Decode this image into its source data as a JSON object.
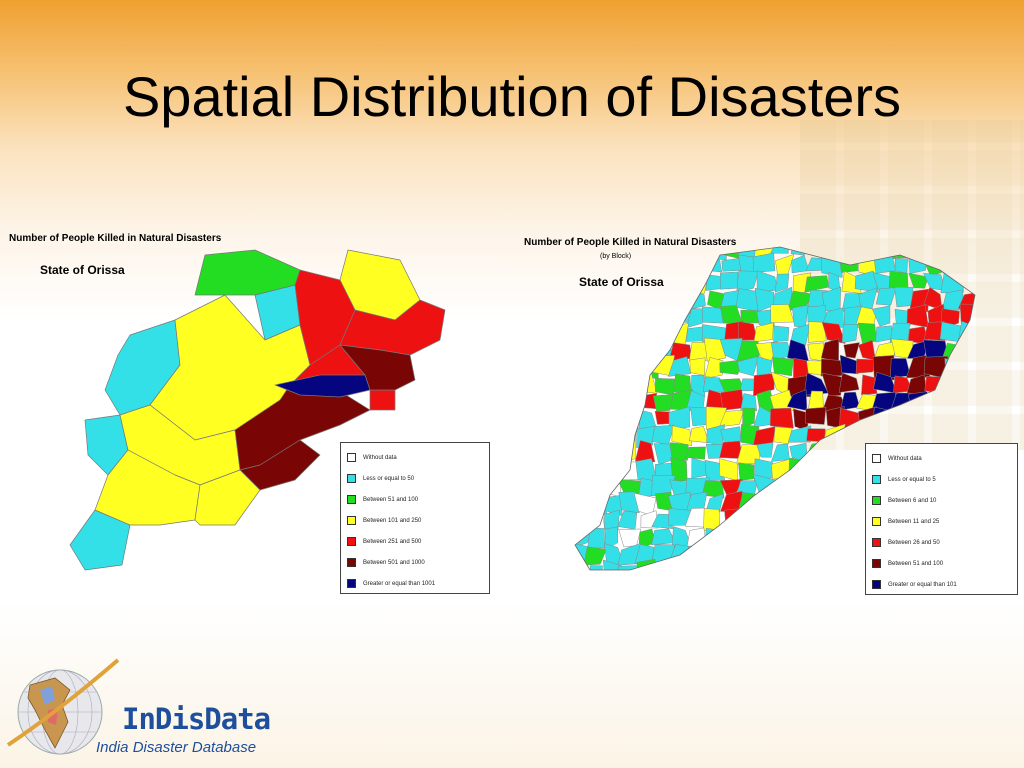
{
  "slide": {
    "title": "Spatial Distribution of Disasters"
  },
  "maps": [
    {
      "title": "Number of People Killed in Natural Disasters",
      "subtitle": "",
      "state": "State of Orissa",
      "legend": [
        {
          "label": "Without data",
          "color": "#ffffff"
        },
        {
          "label": "Less or equal to 50",
          "color": "#33e0e8"
        },
        {
          "label": "Between 51 and 100",
          "color": "#22dd22"
        },
        {
          "label": "Between 101 and 250",
          "color": "#ffff22"
        },
        {
          "label": "Between 251 and 500",
          "color": "#ee1111"
        },
        {
          "label": "Between 501 and 1000",
          "color": "#7a0505"
        },
        {
          "label": "Greater or equal than 1001",
          "color": "#050580"
        }
      ]
    },
    {
      "title": "Number of People Killed in Natural Disasters",
      "subtitle": "(by Block)",
      "state": "State of Orissa",
      "legend": [
        {
          "label": "Without data",
          "color": "#ffffff"
        },
        {
          "label": "Less or equal to 5",
          "color": "#33e0e8"
        },
        {
          "label": "Between 6 and 10",
          "color": "#22dd22"
        },
        {
          "label": "Between 11 and 25",
          "color": "#ffff22"
        },
        {
          "label": "Between 26 and 50",
          "color": "#ee1111"
        },
        {
          "label": "Between 51 and 100",
          "color": "#7a0505"
        },
        {
          "label": "Greater or equal than 101",
          "color": "#050580"
        }
      ]
    }
  ],
  "logo": {
    "name": "InDisData",
    "tagline": "India Disaster Database",
    "icon": "india-globe-logo"
  },
  "colors": {
    "cyan": "#33e0e8",
    "green": "#22dd22",
    "yellow": "#ffff22",
    "red": "#ee1111",
    "maroon": "#7a0505",
    "navy": "#050580",
    "brand": "#1e4f9c"
  }
}
